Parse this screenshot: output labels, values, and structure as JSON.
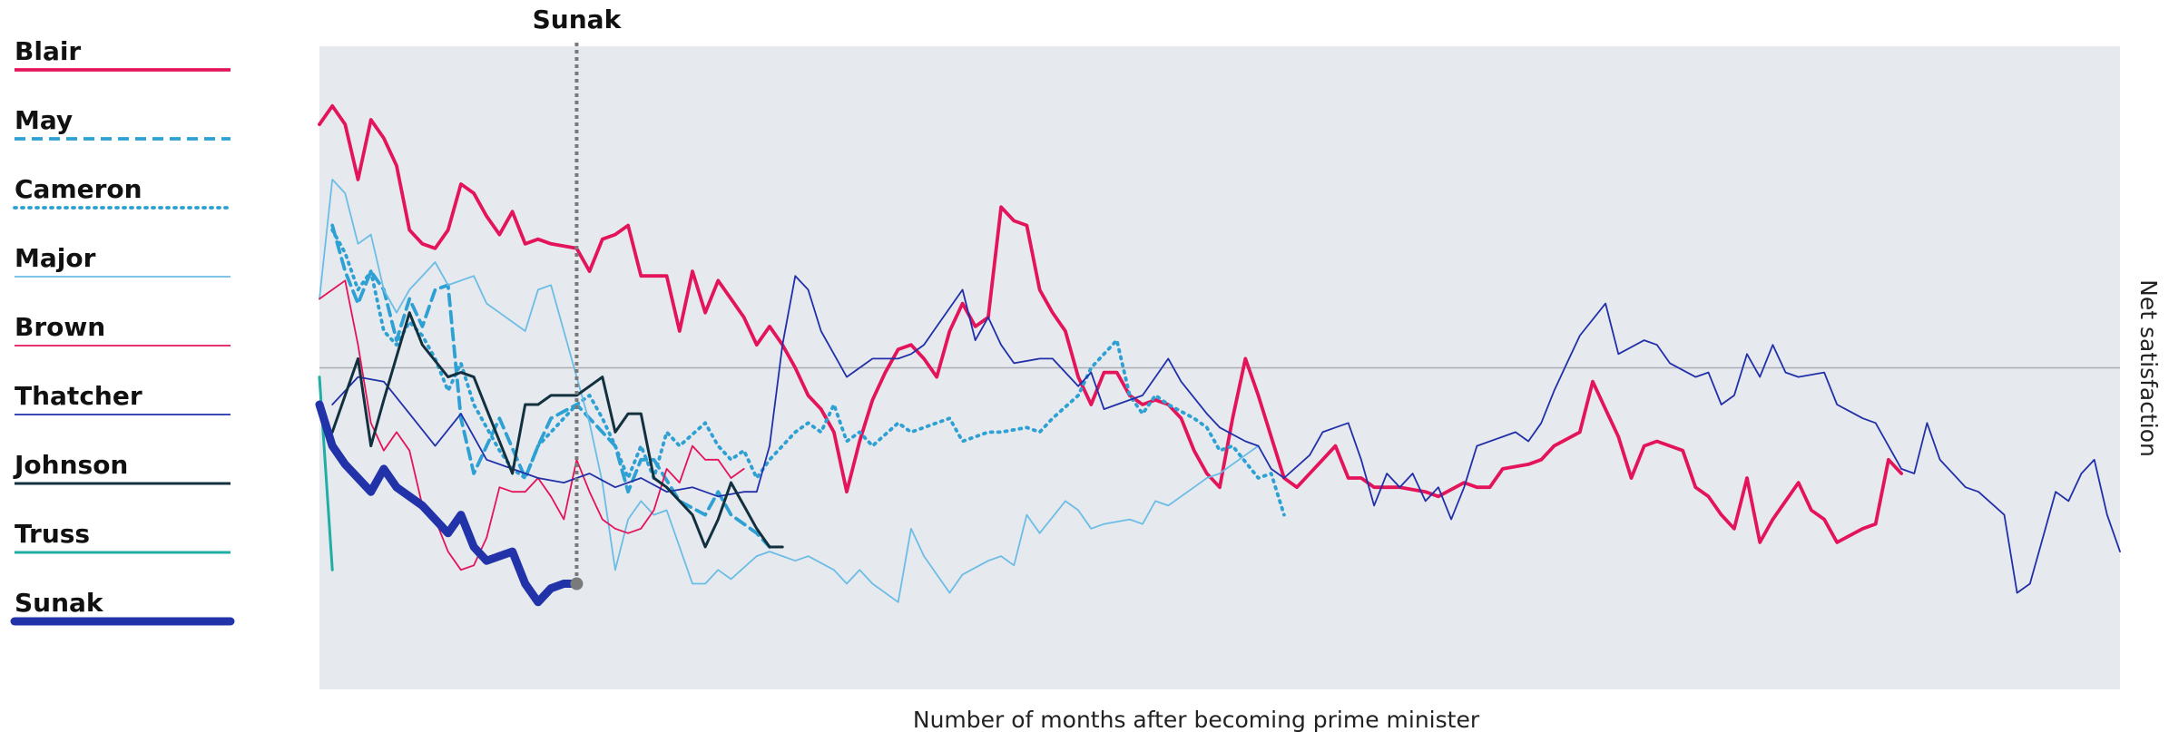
{
  "chart_data": {
    "type": "line",
    "xlabel": "Number of months after becoming prime minister",
    "ylabel": "Net satisfaction",
    "xlim": [
      0,
      140
    ],
    "ylim": [
      -70,
      70
    ],
    "hline": 0,
    "background": "#e6e9ee",
    "annotations": [
      {
        "text": "Sunak",
        "x": 20
      }
    ],
    "series": [
      {
        "name": "Blair",
        "color": "#e3145a",
        "line_style": "solid",
        "weight": "thick",
        "x": [
          0,
          1,
          2,
          3,
          4,
          5,
          6,
          7,
          8,
          9,
          10,
          11,
          12,
          13,
          14,
          15,
          16,
          17,
          18,
          20,
          21,
          22,
          23,
          24,
          25,
          26,
          27,
          28,
          29,
          30,
          31,
          32,
          33,
          34,
          35,
          36,
          37,
          38,
          39,
          40,
          41,
          42,
          43,
          44,
          45,
          46,
          47,
          48,
          49,
          50,
          51,
          52,
          53,
          54,
          55,
          56,
          57,
          58,
          59,
          60,
          61,
          62,
          63,
          64,
          65,
          66,
          67,
          68,
          69,
          70,
          71,
          72,
          73,
          74,
          75,
          76,
          77,
          78,
          79,
          80,
          81,
          82,
          84,
          86,
          87,
          89,
          90,
          91,
          92,
          94,
          95,
          96,
          98,
          99,
          100,
          101,
          102,
          103,
          104,
          106,
          107,
          108,
          109,
          110,
          111,
          112,
          113,
          115,
          116,
          117,
          118,
          120,
          121,
          122,
          123
        ],
        "values": [
          53,
          57,
          53,
          41,
          54,
          50,
          44,
          30,
          27,
          26,
          30,
          40,
          38,
          33,
          29,
          34,
          27,
          28,
          27,
          26,
          21,
          28,
          29,
          31,
          20,
          20,
          20,
          8,
          21,
          12,
          19,
          15,
          11,
          5,
          9,
          5,
          0,
          -6,
          -9,
          -14,
          -27,
          -16,
          -7,
          -1,
          4,
          5,
          2,
          -2,
          8,
          14,
          9,
          11,
          35,
          32,
          31,
          17,
          12,
          8,
          -2,
          -8,
          -1,
          -1,
          -6,
          -8,
          -7,
          -8,
          -11,
          -18,
          -23,
          -26,
          -11,
          2,
          -6,
          -15,
          -24,
          -26,
          -23,
          -20,
          -17,
          -24,
          -24,
          -26,
          -26,
          -27,
          -28,
          -25,
          -26,
          -26,
          -22,
          -21,
          -20,
          -17,
          -14,
          -3,
          -9,
          -15,
          -24,
          -17,
          -16,
          -18,
          -26,
          -28,
          -32,
          -35,
          -24,
          -38,
          -33,
          -25,
          -31,
          -33,
          -38,
          -35,
          -34,
          -20,
          -23
        ]
      },
      {
        "name": "May",
        "color": "#2ea1d4",
        "line_style": "dashed",
        "weight": "thick",
        "x": [
          1,
          2,
          3,
          4,
          5,
          6,
          7,
          8,
          9,
          10,
          11,
          12,
          13,
          14,
          16,
          17,
          18,
          20,
          21,
          23,
          24,
          25,
          26,
          28,
          30,
          31,
          32,
          34,
          35
        ],
        "values": [
          31,
          21,
          14,
          21,
          17,
          6,
          15,
          9,
          17,
          18,
          -11,
          -23,
          -17,
          -11,
          -24,
          -17,
          -11,
          -8,
          -11,
          -17,
          -27,
          -20,
          -20,
          -29,
          -32,
          -27,
          -32,
          -36,
          -39
        ]
      },
      {
        "name": "Cameron",
        "color": "#2ea1d4",
        "line_style": "dotted",
        "weight": "thick",
        "x": [
          1,
          2,
          3,
          4,
          5,
          6,
          7,
          8,
          9,
          10,
          11,
          12,
          13,
          14,
          15,
          16,
          17,
          18,
          20,
          21,
          22,
          23,
          24,
          25,
          26,
          27,
          28,
          30,
          31,
          32,
          33,
          34,
          35,
          37,
          38,
          39,
          40,
          41,
          42,
          43,
          45,
          46,
          47,
          49,
          50,
          52,
          53,
          55,
          56,
          57,
          59,
          60,
          62,
          63,
          64,
          65,
          66,
          68,
          69,
          70,
          71,
          73,
          74,
          75
        ],
        "values": [
          30,
          25,
          17,
          21,
          8,
          5,
          10,
          7,
          2,
          -5,
          1,
          -8,
          -13,
          -18,
          -22,
          -24,
          -17,
          -14,
          -8,
          -6,
          -11,
          -17,
          -24,
          -17,
          -24,
          -14,
          -17,
          -12,
          -17,
          -20,
          -18,
          -24,
          -20,
          -14,
          -12,
          -14,
          -8,
          -16,
          -14,
          -17,
          -12,
          -14,
          -13,
          -11,
          -16,
          -14,
          -14,
          -13,
          -14,
          -11,
          -6,
          0,
          6,
          -6,
          -10,
          -6,
          -8,
          -11,
          -13,
          -18,
          -17,
          -24,
          -23,
          -32
        ]
      },
      {
        "name": "Major",
        "color": "#6cbde6",
        "line_style": "solid",
        "weight": "thin",
        "x": [
          0,
          1,
          2,
          3,
          4,
          5,
          6,
          7,
          8,
          9,
          10,
          12,
          13,
          14,
          16,
          17,
          18,
          19,
          21,
          22,
          23,
          24,
          25,
          26,
          27,
          28,
          29,
          30,
          31,
          32,
          34,
          35,
          37,
          38,
          40,
          41,
          42,
          43,
          45,
          46,
          47,
          49,
          50,
          52,
          53,
          54,
          55,
          56,
          58,
          59,
          60,
          61,
          63,
          64,
          65,
          66,
          68,
          69,
          70,
          72,
          73
        ],
        "values": [
          15,
          41,
          38,
          27,
          29,
          17,
          12,
          17,
          20,
          23,
          18,
          20,
          14,
          12,
          8,
          17,
          18,
          8,
          -12,
          -25,
          -44,
          -33,
          -29,
          -32,
          -31,
          -39,
          -47,
          -47,
          -44,
          -46,
          -41,
          -40,
          -42,
          -41,
          -44,
          -47,
          -44,
          -47,
          -51,
          -35,
          -41,
          -49,
          -45,
          -42,
          -41,
          -43,
          -32,
          -36,
          -29,
          -31,
          -35,
          -34,
          -33,
          -34,
          -29,
          -30,
          -26,
          -24,
          -23,
          -19,
          -17
        ]
      },
      {
        "name": "Brown",
        "color": "#e3145a",
        "line_style": "solid",
        "weight": "thin",
        "x": [
          0,
          1,
          2,
          3,
          4,
          5,
          6,
          7,
          8,
          9,
          10,
          11,
          12,
          13,
          14,
          15,
          16,
          17,
          18,
          19,
          20,
          21,
          22,
          23,
          24,
          25,
          26,
          27,
          28,
          29,
          30,
          31,
          32,
          33
        ],
        "values": [
          15,
          17,
          19,
          5,
          -12,
          -18,
          -14,
          -18,
          -30,
          -33,
          -40,
          -44,
          -43,
          -37,
          -26,
          -27,
          -27,
          -24,
          -28,
          -33,
          -20,
          -27,
          -33,
          -35,
          -36,
          -35,
          -31,
          -22,
          -25,
          -17,
          -20,
          -20,
          -24,
          -22
        ]
      },
      {
        "name": "Thatcher",
        "color": "#2130a8",
        "line_style": "solid",
        "weight": "thin",
        "x": [
          1,
          3,
          5,
          7,
          9,
          11,
          13,
          15,
          17,
          19,
          21,
          23,
          25,
          27,
          29,
          31,
          33,
          34,
          35,
          36,
          37,
          38,
          39,
          41,
          42,
          43,
          45,
          46,
          47,
          48,
          50,
          51,
          52,
          53,
          54,
          56,
          57,
          59,
          60,
          61,
          62,
          64,
          66,
          67,
          69,
          70,
          72,
          73,
          74,
          75,
          77,
          78,
          79,
          80,
          81,
          82,
          83,
          84,
          85,
          86,
          87,
          88,
          89,
          90,
          92,
          93,
          94,
          95,
          96,
          97,
          98,
          100,
          101,
          103,
          104,
          105,
          107,
          108,
          109,
          110,
          111,
          112,
          113,
          114,
          115,
          117,
          118,
          120,
          121,
          123,
          124,
          125,
          126,
          128,
          129,
          131,
          132,
          133,
          134,
          135,
          136,
          137,
          138,
          139,
          140
        ],
        "values": [
          -8,
          -2,
          -3,
          -10,
          -17,
          -10,
          -20,
          -22,
          -24,
          -25,
          -23,
          -26,
          -24,
          -27,
          -26,
          -28,
          -27,
          -27,
          -17,
          5,
          20,
          17,
          8,
          -2,
          0,
          2,
          2,
          3,
          5,
          9,
          17,
          6,
          11,
          5,
          1,
          2,
          2,
          -4,
          -1,
          -9,
          -8,
          -6,
          2,
          -3,
          -10,
          -13,
          -16,
          -17,
          -22,
          -24,
          -19,
          -14,
          -13,
          -12,
          -20,
          -30,
          -23,
          -26,
          -23,
          -29,
          -26,
          -33,
          -26,
          -17,
          -15,
          -14,
          -16,
          -12,
          -5,
          1,
          7,
          14,
          3,
          6,
          5,
          1,
          -2,
          -1,
          -8,
          -6,
          3,
          -2,
          5,
          -1,
          -2,
          -1,
          -8,
          -11,
          -12,
          -22,
          -23,
          -12,
          -20,
          -26,
          -27,
          -32,
          -49,
          -47,
          -37,
          -27,
          -29,
          -23,
          -20,
          -32,
          -40
        ]
      },
      {
        "name": "Johnson",
        "color": "#13303f",
        "line_style": "solid",
        "weight": "medium",
        "x": [
          1,
          2,
          3,
          4,
          5,
          7,
          8,
          10,
          11,
          12,
          13,
          14,
          15,
          16,
          17,
          18,
          20,
          21,
          22,
          23,
          24,
          25,
          26,
          27,
          29,
          30,
          31,
          32,
          33,
          34,
          35,
          36
        ],
        "values": [
          -14,
          -6,
          2,
          -17,
          -7,
          12,
          5,
          -2,
          -1,
          -2,
          -9,
          -16,
          -23,
          -8,
          -8,
          -6,
          -6,
          -4,
          -2,
          -14,
          -10,
          -10,
          -24,
          -26,
          -32,
          -39,
          -33,
          -25,
          -30,
          -35,
          -39,
          -39
        ]
      },
      {
        "name": "Truss",
        "color": "#1fada4",
        "line_style": "solid",
        "weight": "medium",
        "x": [
          0,
          1
        ],
        "values": [
          -2,
          -44
        ]
      },
      {
        "name": "Sunak",
        "color": "#2233aa",
        "line_style": "solid",
        "weight": "heavy",
        "x": [
          0,
          1,
          2,
          3,
          4,
          5,
          6,
          7,
          8,
          9,
          10,
          11,
          12,
          13,
          14,
          15,
          16,
          17,
          18,
          19,
          20
        ],
        "values": [
          -8,
          -17,
          -21,
          -24,
          -27,
          -22,
          -26,
          -28,
          -30,
          -33,
          -36,
          -32,
          -39,
          -42,
          -41,
          -40,
          -47,
          -51,
          -48,
          -47,
          -47
        ]
      }
    ]
  }
}
